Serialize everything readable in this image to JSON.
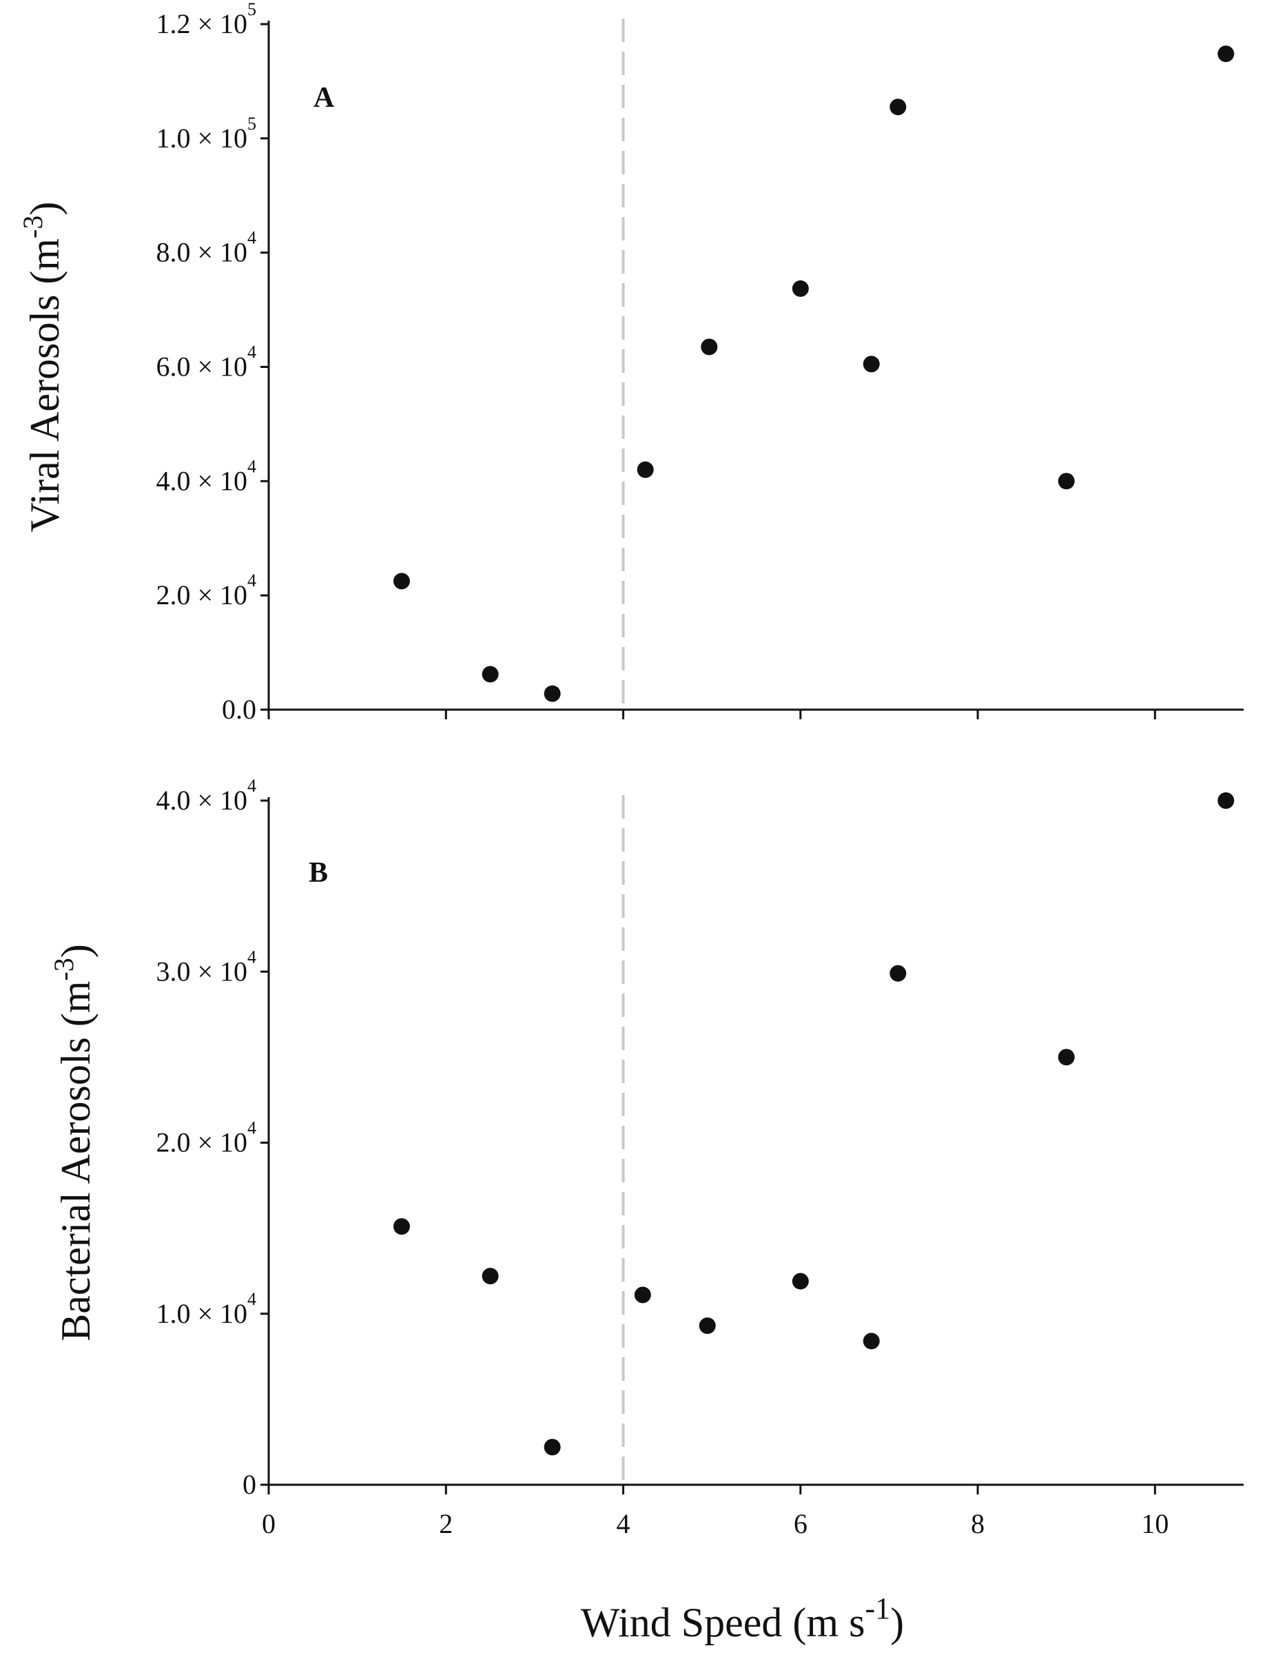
{
  "chart_data": [
    {
      "type": "scatter",
      "panel_label": "A",
      "ylabel": "Viral Aerosols (m",
      "ylabel_sup": "-3",
      "ylabel_close": ")",
      "xlabel": "",
      "xlim": [
        0,
        11
      ],
      "ylim": [
        0,
        120000
      ],
      "yticks": [
        {
          "value": 0,
          "mant": "0.0",
          "exp": ""
        },
        {
          "value": 20000,
          "mant": "2.0 × 10",
          "exp": "4"
        },
        {
          "value": 40000,
          "mant": "4.0 × 10",
          "exp": "4"
        },
        {
          "value": 60000,
          "mant": "6.0 × 10",
          "exp": "4"
        },
        {
          "value": 80000,
          "mant": "8.0 × 10",
          "exp": "4"
        },
        {
          "value": 100000,
          "mant": "1.0 × 10",
          "exp": "5"
        },
        {
          "value": 120000,
          "mant": "1.2 × 10",
          "exp": "5"
        }
      ],
      "xticks": [
        0,
        2,
        4,
        6,
        8,
        10
      ],
      "show_xtick_labels": false,
      "reference_line_x": 4,
      "points": [
        {
          "x": 1.5,
          "y": 22500
        },
        {
          "x": 2.5,
          "y": 6200
        },
        {
          "x": 3.2,
          "y": 2800
        },
        {
          "x": 4.25,
          "y": 42000
        },
        {
          "x": 4.97,
          "y": 63500
        },
        {
          "x": 6.0,
          "y": 73700
        },
        {
          "x": 6.8,
          "y": 60500
        },
        {
          "x": 7.1,
          "y": 105500
        },
        {
          "x": 9.0,
          "y": 40000
        },
        {
          "x": 10.8,
          "y": 114800
        }
      ]
    },
    {
      "type": "scatter",
      "panel_label": "B",
      "ylabel": "Bacterial Aerosols (m",
      "ylabel_sup": "-3",
      "ylabel_close": ")",
      "xlabel": "Wind Speed (m s",
      "xlabel_sup": "-1",
      "xlabel_close": ")",
      "xlim": [
        0,
        11
      ],
      "ylim": [
        0,
        40000
      ],
      "yticks": [
        {
          "value": 0,
          "mant": "0",
          "exp": ""
        },
        {
          "value": 10000,
          "mant": "1.0 × 10",
          "exp": "4"
        },
        {
          "value": 20000,
          "mant": "2.0 × 10",
          "exp": "4"
        },
        {
          "value": 30000,
          "mant": "3.0 × 10",
          "exp": "4"
        },
        {
          "value": 40000,
          "mant": "4.0 × 10",
          "exp": "4"
        }
      ],
      "xticks": [
        0,
        2,
        4,
        6,
        8,
        10
      ],
      "show_xtick_labels": true,
      "reference_line_x": 4,
      "points": [
        {
          "x": 1.5,
          "y": 15100
        },
        {
          "x": 2.5,
          "y": 12200
        },
        {
          "x": 3.2,
          "y": 2200
        },
        {
          "x": 4.22,
          "y": 11100
        },
        {
          "x": 4.95,
          "y": 9300
        },
        {
          "x": 6.0,
          "y": 11900
        },
        {
          "x": 6.8,
          "y": 8400
        },
        {
          "x": 7.1,
          "y": 29900
        },
        {
          "x": 9.0,
          "y": 25000
        },
        {
          "x": 10.8,
          "y": 40000
        }
      ]
    }
  ]
}
